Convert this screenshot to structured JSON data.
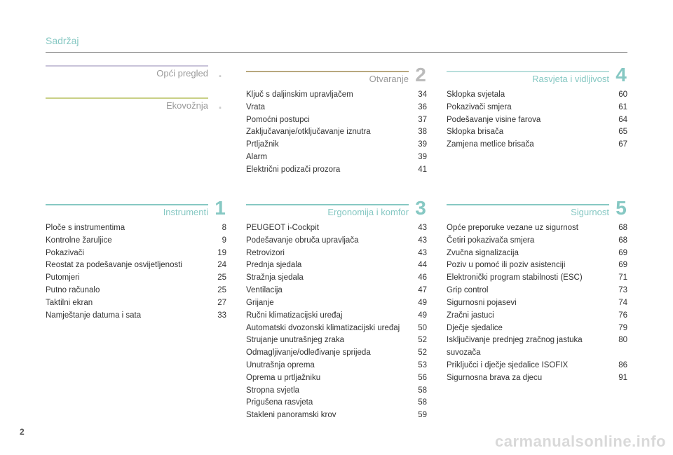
{
  "header": {
    "title": "Sadržaj"
  },
  "page_number": "2",
  "watermark": "carmanualsonline.info",
  "colors": {
    "teal": "#86c8c3",
    "lightteal": "#b8dedb",
    "lavender": "#c9c3d9",
    "beige": "#b8a87e",
    "olive": "#c9d086",
    "grey": "#bbbbbb",
    "text": "#333333",
    "num_grey": "#cccccc"
  },
  "columns": [
    {
      "sections": [
        {
          "title": "Opći pregled",
          "number": ".",
          "sep_color": "#c9c3d9",
          "title_color": "#9a9a9a",
          "num_color": "#cccccc",
          "items": []
        },
        {
          "title": "Ekovožnja",
          "number": ".",
          "sep_color": "#c9d086",
          "title_color": "#9a9a9a",
          "num_color": "#cccccc",
          "items": []
        },
        {
          "title": "Instrumenti",
          "number": "1",
          "sep_color": "#86c8c3",
          "title_color": "#86c8c3",
          "num_color": "#86c8c3",
          "items": [
            {
              "label": "Ploče s instrumentima",
              "page": "8"
            },
            {
              "label": "Kontrolne žaruljice",
              "page": "9"
            },
            {
              "label": "Pokazivači",
              "page": "19"
            },
            {
              "label": "Reostat za podešavanje osvijetljenosti",
              "page": "24"
            },
            {
              "label": "Putomjeri",
              "page": "25"
            },
            {
              "label": "Putno računalo",
              "page": "25"
            },
            {
              "label": "Taktilni ekran",
              "page": "27"
            },
            {
              "label": "Namještanje datuma i sata",
              "page": "33"
            }
          ]
        }
      ]
    },
    {
      "sections": [
        {
          "title": "Otvaranje",
          "number": "2",
          "sep_color": "#b8a87e",
          "title_color": "#9a9a9a",
          "num_color": "#bbbbbb",
          "items": [
            {
              "label": "Ključ s daljinskim upravljačem",
              "page": "34"
            },
            {
              "label": "Vrata",
              "page": "36"
            },
            {
              "label": "Pomoćni postupci",
              "page": "37"
            },
            {
              "label": "Zaključavanje/otključavanje iznutra",
              "page": "38"
            },
            {
              "label": "Prtljažnik",
              "page": "39"
            },
            {
              "label": "Alarm",
              "page": "39"
            },
            {
              "label": "Električni podizači prozora",
              "page": "41"
            }
          ]
        },
        {
          "title": "Ergonomija i komfor",
          "number": "3",
          "sep_color": "#86c8c3",
          "title_color": "#86c8c3",
          "num_color": "#86c8c3",
          "items": [
            {
              "label": "PEUGEOT i-Cockpit",
              "page": "43"
            },
            {
              "label": "Podešavanje obruča upravljača",
              "page": "43"
            },
            {
              "label": "Retrovizori",
              "page": "43"
            },
            {
              "label": "Prednja sjedala",
              "page": "44"
            },
            {
              "label": "Stražnja sjedala",
              "page": "46"
            },
            {
              "label": "Ventilacija",
              "page": "47"
            },
            {
              "label": "Grijanje",
              "page": "49"
            },
            {
              "label": "Ručni klimatizacijski uređaj",
              "page": "49"
            },
            {
              "label": "Automatski dvozonski klimatizacijski uređaj",
              "page": "50"
            },
            {
              "label": "Strujanje unutrašnjeg zraka",
              "page": "52"
            },
            {
              "label": "Odmagljivanje/odleđivanje sprijeda",
              "page": "52"
            },
            {
              "label": "Unutrašnja oprema",
              "page": "53"
            },
            {
              "label": "Oprema u prtljažniku",
              "page": "56"
            },
            {
              "label": "Stropna svjetla",
              "page": "58"
            },
            {
              "label": "Prigušena rasvjeta",
              "page": "58"
            },
            {
              "label": "Stakleni panoramski krov",
              "page": "59"
            }
          ]
        }
      ]
    },
    {
      "sections": [
        {
          "title": "Rasvjeta i vidljivost",
          "number": "4",
          "sep_color": "#b8dedb",
          "title_color": "#86c8c3",
          "num_color": "#86c8c3",
          "items": [
            {
              "label": "Sklopka svjetala",
              "page": "60"
            },
            {
              "label": "Pokazivači smjera",
              "page": "61"
            },
            {
              "label": "Podešavanje visine farova",
              "page": "64"
            },
            {
              "label": "Sklopka brisača",
              "page": "65"
            },
            {
              "label": "Zamjena metlice brisača",
              "page": "67"
            }
          ]
        },
        {
          "title": "Sigurnost",
          "number": "5",
          "sep_color": "#86c8c3",
          "title_color": "#86c8c3",
          "num_color": "#86c8c3",
          "items": [
            {
              "label": "Opće preporuke vezane uz sigurnost",
              "page": "68"
            },
            {
              "label": "Četiri pokazivača smjera",
              "page": "68"
            },
            {
              "label": "Zvučna signalizacija",
              "page": "69"
            },
            {
              "label": "Poziv u pomoć ili poziv asistenciji",
              "page": "69"
            },
            {
              "label": "Elektronički program stabilnosti (ESC)",
              "page": "71"
            },
            {
              "label": "Grip control",
              "page": "73"
            },
            {
              "label": "Sigurnosni pojasevi",
              "page": "74"
            },
            {
              "label": "Zračni jastuci",
              "page": "76"
            },
            {
              "label": "Dječje sjedalice",
              "page": "79"
            },
            {
              "label": "Isključivanje prednjeg zračnog jastuka suvozača",
              "page": "80"
            },
            {
              "label": "Priključci i dječje sjedalice ISOFIX",
              "page": "86"
            },
            {
              "label": "Sigurnosna brava za djecu",
              "page": "91"
            }
          ]
        }
      ]
    }
  ]
}
